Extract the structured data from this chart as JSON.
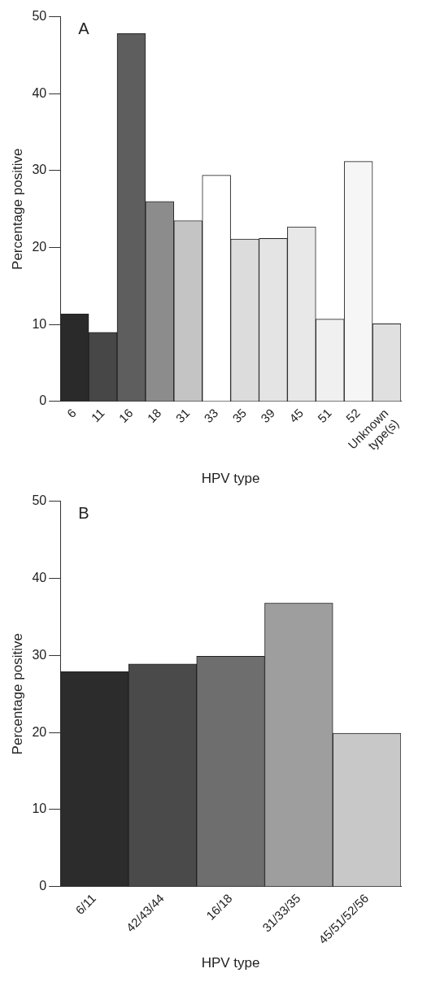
{
  "chart_data": [
    {
      "type": "bar",
      "title": "A",
      "xlabel": "HPV type",
      "ylabel": "Percentage positive",
      "categories": [
        "6",
        "11",
        "16",
        "18",
        "31",
        "33",
        "35",
        "39",
        "45",
        "51",
        "52",
        "Unknown type(s)"
      ],
      "values": [
        11.4,
        9.0,
        47.8,
        26.0,
        23.5,
        29.4,
        21.1,
        21.2,
        22.7,
        10.7,
        31.2,
        10.1
      ],
      "colors": [
        "#2a2a2a",
        "#474747",
        "#5e5e5e",
        "#8c8c8c",
        "#c4c4c4",
        "#ffffff",
        "#dcdcdc",
        "#e4e4e4",
        "#e8e8e8",
        "#f0f0f0",
        "#f6f6f6",
        "#e0e0e0"
      ],
      "ylim": [
        0,
        50
      ],
      "yticks": [
        0,
        10,
        20,
        30,
        40,
        50
      ],
      "grid": false,
      "legend": false
    },
    {
      "type": "bar",
      "title": "B",
      "xlabel": "HPV type",
      "ylabel": "Percentage positive",
      "categories": [
        "6/11",
        "42/43/44",
        "16/18",
        "31/33/35",
        "45/51/52/56"
      ],
      "values": [
        27.9,
        28.9,
        29.9,
        36.8,
        19.9
      ],
      "colors": [
        "#2c2c2c",
        "#4a4a4a",
        "#6e6e6e",
        "#9e9e9e",
        "#c8c8c8"
      ],
      "ylim": [
        0,
        50
      ],
      "yticks": [
        0,
        10,
        20,
        30,
        40,
        50
      ],
      "grid": false,
      "legend": false
    }
  ]
}
